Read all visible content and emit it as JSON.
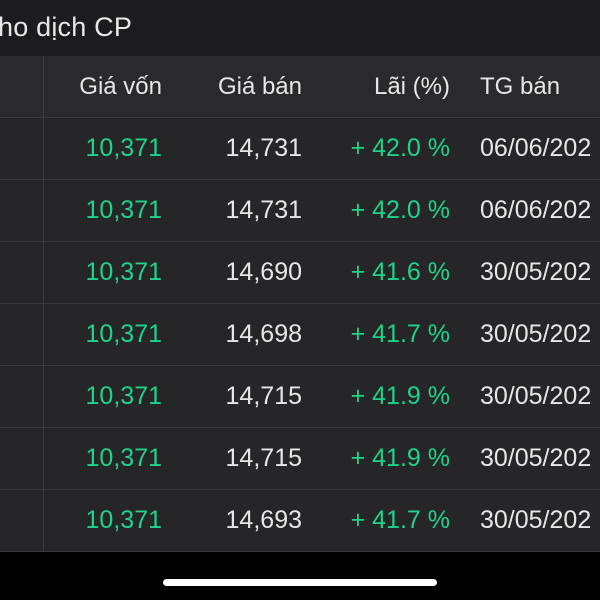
{
  "title": "ho dịch CP",
  "headers": {
    "cost": "Giá vốn",
    "sell": "Giá bán",
    "gain": "Lãi (%)",
    "time": "TG bán"
  },
  "rows": [
    {
      "cost": "10,371",
      "sell": "14,731",
      "gain": "+ 42.0 %",
      "date": "06/06/202"
    },
    {
      "cost": "10,371",
      "sell": "14,731",
      "gain": "+ 42.0 %",
      "date": "06/06/202"
    },
    {
      "cost": "10,371",
      "sell": "14,690",
      "gain": "+ 41.6 %",
      "date": "30/05/202"
    },
    {
      "cost": "10,371",
      "sell": "14,698",
      "gain": "+ 41.7 %",
      "date": "30/05/202"
    },
    {
      "cost": "10,371",
      "sell": "14,715",
      "gain": "+ 41.9 %",
      "date": "30/05/202"
    },
    {
      "cost": "10,371",
      "sell": "14,715",
      "gain": "+ 41.9 %",
      "date": "30/05/202"
    },
    {
      "cost": "10,371",
      "sell": "14,693",
      "gain": "+ 41.7 %",
      "date": "30/05/202"
    }
  ],
  "colors": {
    "positive": "#1ed38a",
    "text": "#e6e6e6",
    "background": "#262628"
  }
}
